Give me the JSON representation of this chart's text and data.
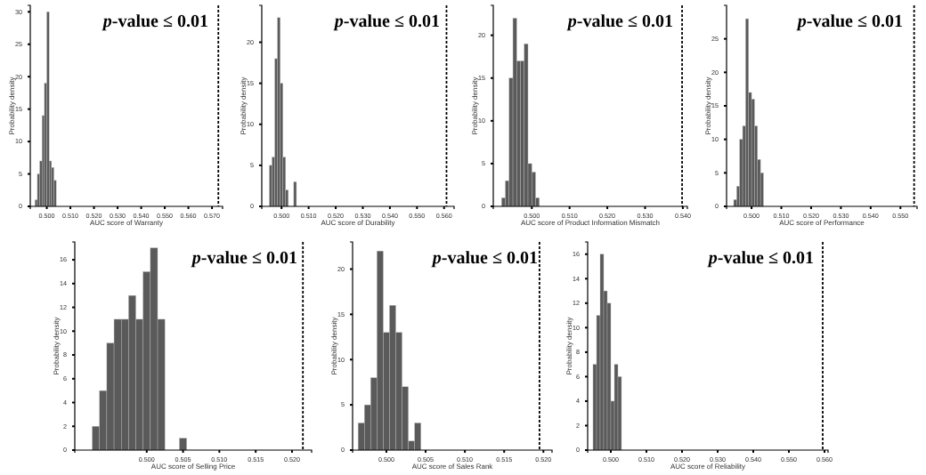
{
  "chart_data": [
    {
      "type": "histogram",
      "xlabel": "AUC score of Warranty",
      "ylabel": "Probability density",
      "color": "#5a5a5a",
      "bins": [
        0.495,
        0.496,
        0.497,
        0.498,
        0.499,
        0.5,
        0.501,
        0.502,
        0.503,
        0.504
      ],
      "values": [
        1,
        5,
        7,
        14,
        19,
        30,
        7,
        6,
        4
      ],
      "xlim": [
        0.493,
        0.5745
      ],
      "ylim": [
        0,
        31
      ],
      "xticks": [
        {
          "value": 0.5,
          "label": "0.500"
        },
        {
          "value": 0.51,
          "label": "0.510"
        },
        {
          "value": 0.52,
          "label": "0.520"
        },
        {
          "value": 0.53,
          "label": "0.530"
        },
        {
          "value": 0.54,
          "label": "0.540"
        },
        {
          "value": 0.55,
          "label": "0.550"
        },
        {
          "value": 0.56,
          "label": "0.560"
        },
        {
          "value": 0.57,
          "label": "0.570"
        }
      ],
      "yticks": [
        0,
        5,
        10,
        15,
        20,
        25,
        30
      ],
      "ref_lines": [
        {
          "axis": "x",
          "value": 0.5727,
          "line_style": "dashed",
          "color": "#000000"
        }
      ],
      "annotations": [
        "p-value ≤ 0.01"
      ]
    },
    {
      "type": "histogram",
      "xlabel": "AUC score of Durability",
      "ylabel": "Probability density",
      "color": "#5a5a5a",
      "bins": [
        0.4955,
        0.4965,
        0.4975,
        0.4985,
        0.4995,
        0.5005,
        0.5015,
        0.5025,
        0.5035,
        0.5045,
        0.5055
      ],
      "values": [
        5,
        6,
        18,
        23,
        15,
        6,
        2,
        0,
        0,
        3
      ],
      "xlim": [
        0.4927,
        0.5637
      ],
      "ylim": [
        0,
        24.5
      ],
      "xticks": [
        {
          "value": 0.5,
          "label": "0.500"
        },
        {
          "value": 0.51,
          "label": "0.510"
        },
        {
          "value": 0.52,
          "label": "0.520"
        },
        {
          "value": 0.53,
          "label": "0.530"
        },
        {
          "value": 0.54,
          "label": "0.540"
        },
        {
          "value": 0.55,
          "label": "0.550"
        },
        {
          "value": 0.56,
          "label": "0.560"
        }
      ],
      "yticks": [
        0,
        5,
        10,
        15,
        20
      ],
      "ref_lines": [
        {
          "axis": "x",
          "value": 0.5609,
          "line_style": "dashed",
          "color": "#000000"
        }
      ],
      "annotations": [
        "p-value ≤ 0.01"
      ]
    },
    {
      "type": "histogram",
      "xlabel": "AUC score of Product Information Mismatch",
      "ylabel": "Probability density",
      "color": "#5a5a5a",
      "bins": [
        0.492,
        0.493,
        0.494,
        0.495,
        0.496,
        0.497,
        0.498,
        0.499,
        0.5,
        0.501,
        0.502
      ],
      "values": [
        1,
        3,
        15,
        22,
        17,
        17,
        19,
        5,
        4,
        1
      ],
      "xlim": [
        0.4898,
        0.5412
      ],
      "ylim": [
        0,
        23.5
      ],
      "xticks": [
        {
          "value": 0.5,
          "label": "0.500"
        },
        {
          "value": 0.51,
          "label": "0.510"
        },
        {
          "value": 0.52,
          "label": "0.520"
        },
        {
          "value": 0.53,
          "label": "0.530"
        },
        {
          "value": 0.54,
          "label": "0.540"
        }
      ],
      "yticks": [
        0,
        5,
        10,
        15,
        20
      ],
      "ref_lines": [
        {
          "axis": "x",
          "value": 0.5398,
          "line_style": "dashed",
          "color": "#000000"
        }
      ],
      "annotations": [
        "p-value ≤ 0.01"
      ]
    },
    {
      "type": "histogram",
      "xlabel": "AUC score of Performance",
      "ylabel": "Probability density",
      "color": "#5a5a5a",
      "bins": [
        0.494,
        0.495,
        0.496,
        0.497,
        0.498,
        0.499,
        0.5,
        0.501,
        0.502,
        0.503,
        0.504
      ],
      "values": [
        1,
        3,
        10,
        12,
        28,
        17,
        16,
        12,
        7,
        5
      ],
      "xlim": [
        0.4916,
        0.5556
      ],
      "ylim": [
        0,
        30
      ],
      "xticks": [
        {
          "value": 0.5,
          "label": "0.500"
        },
        {
          "value": 0.51,
          "label": "0.510"
        },
        {
          "value": 0.52,
          "label": "0.520"
        },
        {
          "value": 0.53,
          "label": "0.530"
        },
        {
          "value": 0.54,
          "label": "0.540"
        },
        {
          "value": 0.55,
          "label": "0.550"
        }
      ],
      "yticks": [
        0,
        5,
        10,
        15,
        20,
        25
      ],
      "ref_lines": [
        {
          "axis": "x",
          "value": 0.5546,
          "line_style": "dashed",
          "color": "#000000"
        }
      ],
      "annotations": [
        "p-value ≤ 0.01"
      ]
    },
    {
      "type": "histogram",
      "xlabel": "AUC score of Selling Price",
      "ylabel": "Probability density",
      "color": "#5a5a5a",
      "bins": [
        0.4925,
        0.4935,
        0.4945,
        0.4955,
        0.4965,
        0.4975,
        0.4985,
        0.4995,
        0.5005,
        0.5015,
        0.5025,
        0.5035,
        0.5045,
        0.5055
      ],
      "values": [
        2,
        5,
        9,
        11,
        11,
        13,
        11,
        15,
        17,
        11,
        0,
        0,
        1
      ],
      "xlim": [
        0.4901,
        0.5227
      ],
      "ylim": [
        0,
        17.5
      ],
      "xticks": [
        {
          "value": 0.5,
          "label": "0.500"
        },
        {
          "value": 0.505,
          "label": "0.505"
        },
        {
          "value": 0.51,
          "label": "0.510"
        },
        {
          "value": 0.515,
          "label": "0.515"
        },
        {
          "value": 0.52,
          "label": "0.520"
        }
      ],
      "yticks": [
        0,
        2,
        4,
        6,
        8,
        10,
        12,
        14,
        16
      ],
      "ref_lines": [
        {
          "axis": "x",
          "value": 0.5215,
          "line_style": "dashed",
          "color": "#000000"
        }
      ],
      "annotations": [
        "p-value ≤ 0.01"
      ]
    },
    {
      "type": "histogram",
      "xlabel": "AUC score of Sales Rank",
      "ylabel": "Probability density",
      "color": "#5a5a5a",
      "bins": [
        0.4964,
        0.4972,
        0.498,
        0.4988,
        0.4996,
        0.5004,
        0.5012,
        0.502,
        0.5028,
        0.5036,
        0.5044
      ],
      "values": [
        3,
        5,
        8,
        22,
        13,
        16,
        13,
        7,
        1,
        3
      ],
      "xlim": [
        0.4957,
        0.5211
      ],
      "ylim": [
        0,
        23
      ],
      "xticks": [
        {
          "value": 0.5,
          "label": "0.500"
        },
        {
          "value": 0.505,
          "label": "0.505"
        },
        {
          "value": 0.51,
          "label": "0.510"
        },
        {
          "value": 0.515,
          "label": "0.515"
        },
        {
          "value": 0.52,
          "label": "0.520"
        }
      ],
      "yticks": [
        0,
        5,
        10,
        15,
        20
      ],
      "ref_lines": [
        {
          "axis": "x",
          "value": 0.5195,
          "line_style": "dashed",
          "color": "#000000"
        }
      ],
      "annotations": [
        "p-value ≤ 0.01"
      ]
    },
    {
      "type": "histogram",
      "xlabel": "AUC score of Reliability",
      "ylabel": "Probability density",
      "color": "#5a5a5a",
      "bins": [
        0.495,
        0.496,
        0.497,
        0.498,
        0.499,
        0.5,
        0.501,
        0.502,
        0.503
      ],
      "values": [
        7,
        11,
        16,
        13,
        12,
        4,
        7,
        6
      ],
      "xlim": [
        0.4935,
        0.561
      ],
      "ylim": [
        0,
        17
      ],
      "xticks": [
        {
          "value": 0.5,
          "label": "0.500"
        },
        {
          "value": 0.51,
          "label": "0.510"
        },
        {
          "value": 0.52,
          "label": "0.520"
        },
        {
          "value": 0.53,
          "label": "0.530"
        },
        {
          "value": 0.54,
          "label": "0.540"
        },
        {
          "value": 0.55,
          "label": "0.550"
        },
        {
          "value": 0.56,
          "label": "0.560"
        }
      ],
      "yticks": [
        0,
        2,
        4,
        6,
        8,
        10,
        12,
        14,
        16
      ],
      "ref_lines": [
        {
          "axis": "x",
          "value": 0.5595,
          "line_style": "dashed",
          "color": "#000000"
        }
      ],
      "annotations": [
        "p-value ≤ 0.01"
      ]
    }
  ]
}
